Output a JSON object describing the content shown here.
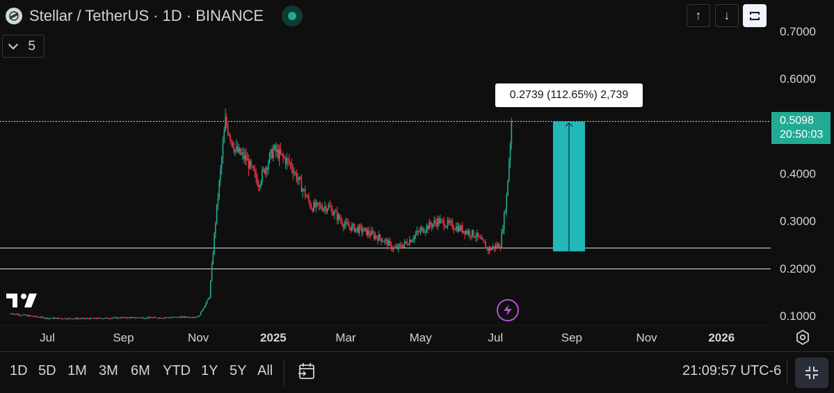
{
  "header": {
    "symbol_title": "Stellar / TetherUS · 1D · BINANCE",
    "indicator_count": "5"
  },
  "toolbar": {
    "up_arrow": "↑",
    "down_arrow": "↓"
  },
  "price_axis": {
    "ticks": [
      "0.7000",
      "0.6000",
      "0.4000",
      "0.3000",
      "0.2000",
      "0.1000"
    ],
    "current_price": "0.5098",
    "countdown": "20:50:03"
  },
  "time_axis": {
    "ticks": [
      "Jul",
      "Sep",
      "Nov",
      "2025",
      "Mar",
      "May",
      "Jul",
      "Sep",
      "Nov",
      "2026"
    ],
    "bold": [
      false,
      false,
      false,
      true,
      false,
      false,
      false,
      false,
      false,
      true
    ]
  },
  "measure_tool": {
    "label": "0.2739 (112.65%) 2,739",
    "from_price": 0.2359,
    "to_price": 0.5098
  },
  "horizontal_lines": [
    0.5098,
    0.2428,
    0.1988
  ],
  "bottom_bar": {
    "ranges": [
      "1D",
      "5D",
      "1M",
      "3M",
      "6M",
      "YTD",
      "1Y",
      "5Y",
      "All"
    ],
    "clock": "21:09:57 UTC-6"
  },
  "colors": {
    "background": "#0f0f0f",
    "up": "#22ab94",
    "down": "#f23645",
    "accent": "#22ab94",
    "measure_fill": "#22b8b8",
    "text": "#d1d4dc"
  },
  "chart_data": {
    "type": "candlestick",
    "symbol": "XLM/USDT",
    "interval": "1D",
    "ylim": [
      0.07,
      0.72
    ],
    "x_labels": [
      "Jul",
      "Sep",
      "Nov",
      "2025",
      "Mar",
      "May",
      "Jul",
      "Sep",
      "Nov",
      "2026"
    ],
    "series": [
      {
        "close_path_dates": [
          "2024-06",
          "2024-07",
          "2024-08",
          "2024-09",
          "2024-10",
          "2024-11-01",
          "2024-11-10",
          "2024-11-15",
          "2024-11-23",
          "2024-12-01",
          "2024-12-10",
          "2024-12-20",
          "2025-01-01",
          "2025-01-15",
          "2025-02-01",
          "2025-02-15",
          "2025-03-01",
          "2025-03-15",
          "2025-04-01",
          "2025-04-10",
          "2025-04-20",
          "2025-05-01",
          "2025-05-15",
          "2025-06-01",
          "2025-06-15",
          "2025-06-25",
          "2025-07-05",
          "2025-07-10",
          "2025-07-14"
        ],
        "close_path_values": [
          0.105,
          0.095,
          0.094,
          0.096,
          0.096,
          0.098,
          0.14,
          0.3,
          0.51,
          0.45,
          0.43,
          0.38,
          0.45,
          0.42,
          0.33,
          0.33,
          0.29,
          0.28,
          0.26,
          0.24,
          0.255,
          0.28,
          0.3,
          0.285,
          0.27,
          0.24,
          0.25,
          0.35,
          0.5098
        ]
      }
    ]
  }
}
